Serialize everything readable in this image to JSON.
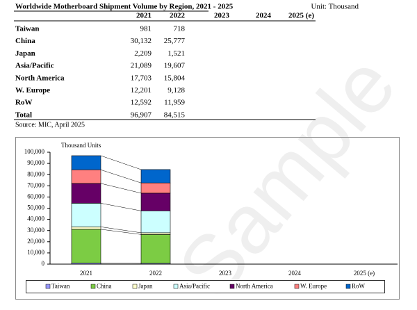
{
  "table": {
    "title": "Worldwide Motherboard Shipment Volume by Region, 2021 - 2025",
    "unit": "Unit: Thousand",
    "columns": [
      "2021",
      "2022",
      "2023",
      "2024",
      "2025 (e)"
    ],
    "rows": [
      [
        "Taiwan",
        "981",
        "718"
      ],
      [
        "China",
        "30,132",
        "25,777"
      ],
      [
        "Japan",
        "2,209",
        "1,521"
      ],
      [
        "Asia/Pacific",
        "21,089",
        "19,607"
      ],
      [
        "North America",
        "17,703",
        "15,804"
      ],
      [
        "W. Europe",
        "12,201",
        "9,128"
      ],
      [
        "RoW",
        "12,592",
        "11,959"
      ],
      [
        "Total",
        "96,907",
        "84,515"
      ]
    ],
    "source": "Source: MIC, April 2025"
  },
  "watermark": "Sample",
  "chart_data": {
    "type": "stacked-bar",
    "y_label": "Thousand Units",
    "categories": [
      "2021",
      "2022",
      "2023",
      "2024",
      "2025 (e)"
    ],
    "series": [
      {
        "name": "Taiwan",
        "color": "#9999ff",
        "values": [
          981,
          718,
          null,
          null,
          null
        ]
      },
      {
        "name": "China",
        "color": "#7ccc44",
        "values": [
          30132,
          25777,
          null,
          null,
          null
        ]
      },
      {
        "name": "Japan",
        "color": "#ffffcc",
        "values": [
          2209,
          1521,
          null,
          null,
          null
        ]
      },
      {
        "name": "Asia/Pacific",
        "color": "#ccffff",
        "values": [
          21089,
          19607,
          null,
          null,
          null
        ]
      },
      {
        "name": "North America",
        "color": "#660066",
        "values": [
          17703,
          15804,
          null,
          null,
          null
        ]
      },
      {
        "name": "W. Europe",
        "color": "#ff8080",
        "values": [
          12201,
          9128,
          null,
          null,
          null
        ]
      },
      {
        "name": "RoW",
        "color": "#0066cc",
        "values": [
          12592,
          11959,
          null,
          null,
          null
        ]
      }
    ],
    "ylim": [
      0,
      100000
    ],
    "yticks": [
      0,
      {
        "value": 10000,
        "label": "10,000"
      },
      {
        "value": 20000,
        "label": "20,000"
      },
      {
        "value": 30000,
        "label": "30,000"
      },
      {
        "value": 40000,
        "label": "40,000"
      },
      {
        "value": 50000,
        "label": "50,000"
      },
      {
        "value": 60000,
        "label": "60,000"
      },
      {
        "value": 70000,
        "label": "70,000"
      },
      {
        "value": 80000,
        "label": "80,000"
      },
      {
        "value": 90000,
        "label": "90,000"
      },
      {
        "value": 100000,
        "label": "100,000"
      }
    ],
    "legend": "bottom"
  }
}
